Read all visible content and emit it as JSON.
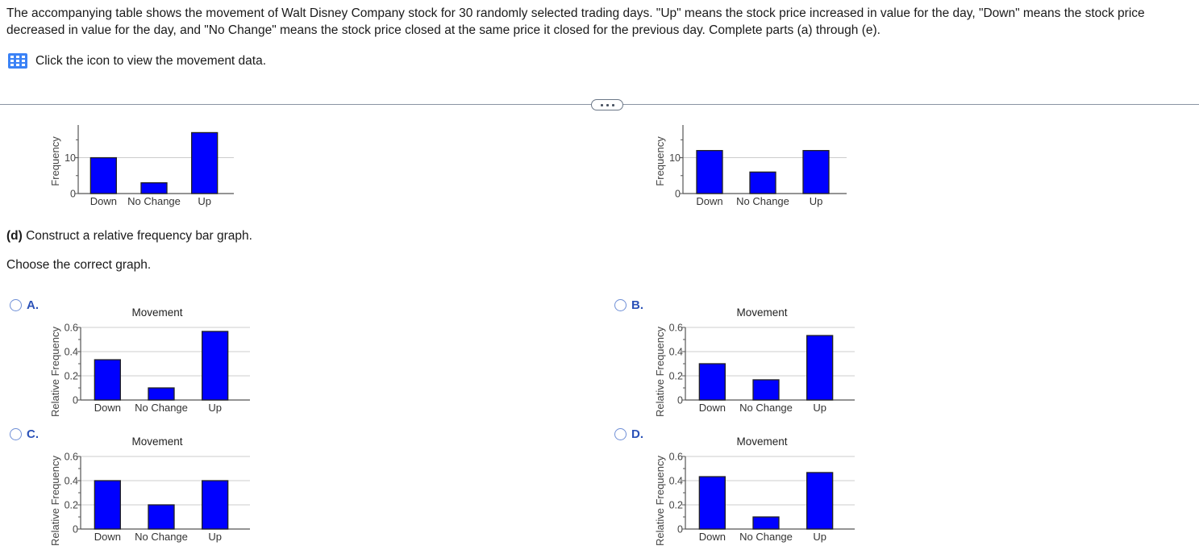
{
  "question": {
    "intro": "The accompanying table shows the movement of Walt Disney Company stock for 30 randomly selected trading days. \"Up\" means the stock price increased in value for the day, \"Down\" means the stock price decreased in value for the day, and \"No Change\" means the stock price closed at the same price it closed for the previous day. Complete parts (a) through (e).",
    "data_link_text": "Click the icon to view the movement data.",
    "part_d_label": "(d)",
    "part_d_text": " Construct a relative frequency bar graph.",
    "instruction": "Choose the correct graph."
  },
  "options": [
    {
      "letter": "A."
    },
    {
      "letter": "B."
    },
    {
      "letter": "C."
    },
    {
      "letter": "D."
    }
  ],
  "colors": {
    "bar_fill": "#0000ff",
    "bar_stroke": "#222222",
    "gridline": "#cccccc",
    "axis": "#555555",
    "option_letter": "#2b52b8",
    "radio_border": "#6f8fd6",
    "separator": "#8a94a3"
  },
  "chart_data": [
    {
      "id": "top-left-frequency",
      "type": "bar",
      "title": "",
      "xlabel": "",
      "ylabel": "Frequency",
      "categories": [
        "Down",
        "No Change",
        "Up"
      ],
      "values": [
        10,
        3,
        17
      ],
      "ylim": [
        0,
        18
      ],
      "yticks": [
        0,
        10
      ],
      "grid": true
    },
    {
      "id": "top-right-frequency",
      "type": "bar",
      "title": "",
      "xlabel": "",
      "ylabel": "Frequency",
      "categories": [
        "Down",
        "No Change",
        "Up"
      ],
      "values": [
        12,
        6,
        12
      ],
      "ylim": [
        0,
        18
      ],
      "yticks": [
        0,
        10
      ],
      "grid": true
    },
    {
      "id": "option-a",
      "type": "bar",
      "title": "Movement",
      "xlabel": "",
      "ylabel": "Relative Frequency",
      "categories": [
        "Down",
        "No Change",
        "Up"
      ],
      "values": [
        0.333,
        0.1,
        0.567
      ],
      "ylim": [
        0,
        0.6
      ],
      "yticks": [
        0,
        0.2,
        0.4,
        0.6
      ],
      "grid": true
    },
    {
      "id": "option-b",
      "type": "bar",
      "title": "Movement",
      "xlabel": "",
      "ylabel": "Relative Frequency",
      "categories": [
        "Down",
        "No Change",
        "Up"
      ],
      "values": [
        0.3,
        0.167,
        0.533
      ],
      "ylim": [
        0,
        0.6
      ],
      "yticks": [
        0,
        0.2,
        0.4,
        0.6
      ],
      "grid": true
    },
    {
      "id": "option-c",
      "type": "bar",
      "title": "Movement",
      "xlabel": "",
      "ylabel": "Relative Frequency",
      "categories": [
        "Down",
        "No Change",
        "Up"
      ],
      "values": [
        0.4,
        0.2,
        0.4
      ],
      "ylim": [
        0,
        0.6
      ],
      "yticks": [
        0,
        0.2,
        0.4,
        0.6
      ],
      "grid": true
    },
    {
      "id": "option-d",
      "type": "bar",
      "title": "Movement",
      "xlabel": "",
      "ylabel": "Relative Frequency",
      "categories": [
        "Down",
        "No Change",
        "Up"
      ],
      "values": [
        0.433,
        0.1,
        0.467
      ],
      "ylim": [
        0,
        0.6
      ],
      "yticks": [
        0,
        0.2,
        0.4,
        0.6
      ],
      "grid": true
    }
  ]
}
